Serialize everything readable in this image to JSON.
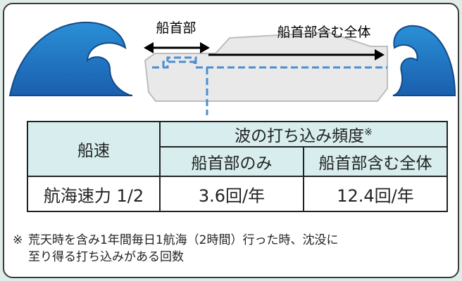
{
  "diagram": {
    "labels": {
      "bow": "船首部",
      "whole": "船首部含む全体"
    },
    "table": {
      "header": {
        "speed": "船速",
        "frequency": "波の打ち込み頻度",
        "note_mark": "※",
        "bow_only": "船首部のみ",
        "whole": "船首部含む全体"
      },
      "rows": [
        [
          "航海速力 1/2",
          "3.6回/年",
          "12.4回/年"
        ]
      ]
    },
    "footnote": {
      "mark": "※",
      "lines": [
        "荒天時を含み1年間毎日1航海（2時間）行った時、沈没に",
        "至り得る打ち込みがある回数"
      ]
    }
  }
}
